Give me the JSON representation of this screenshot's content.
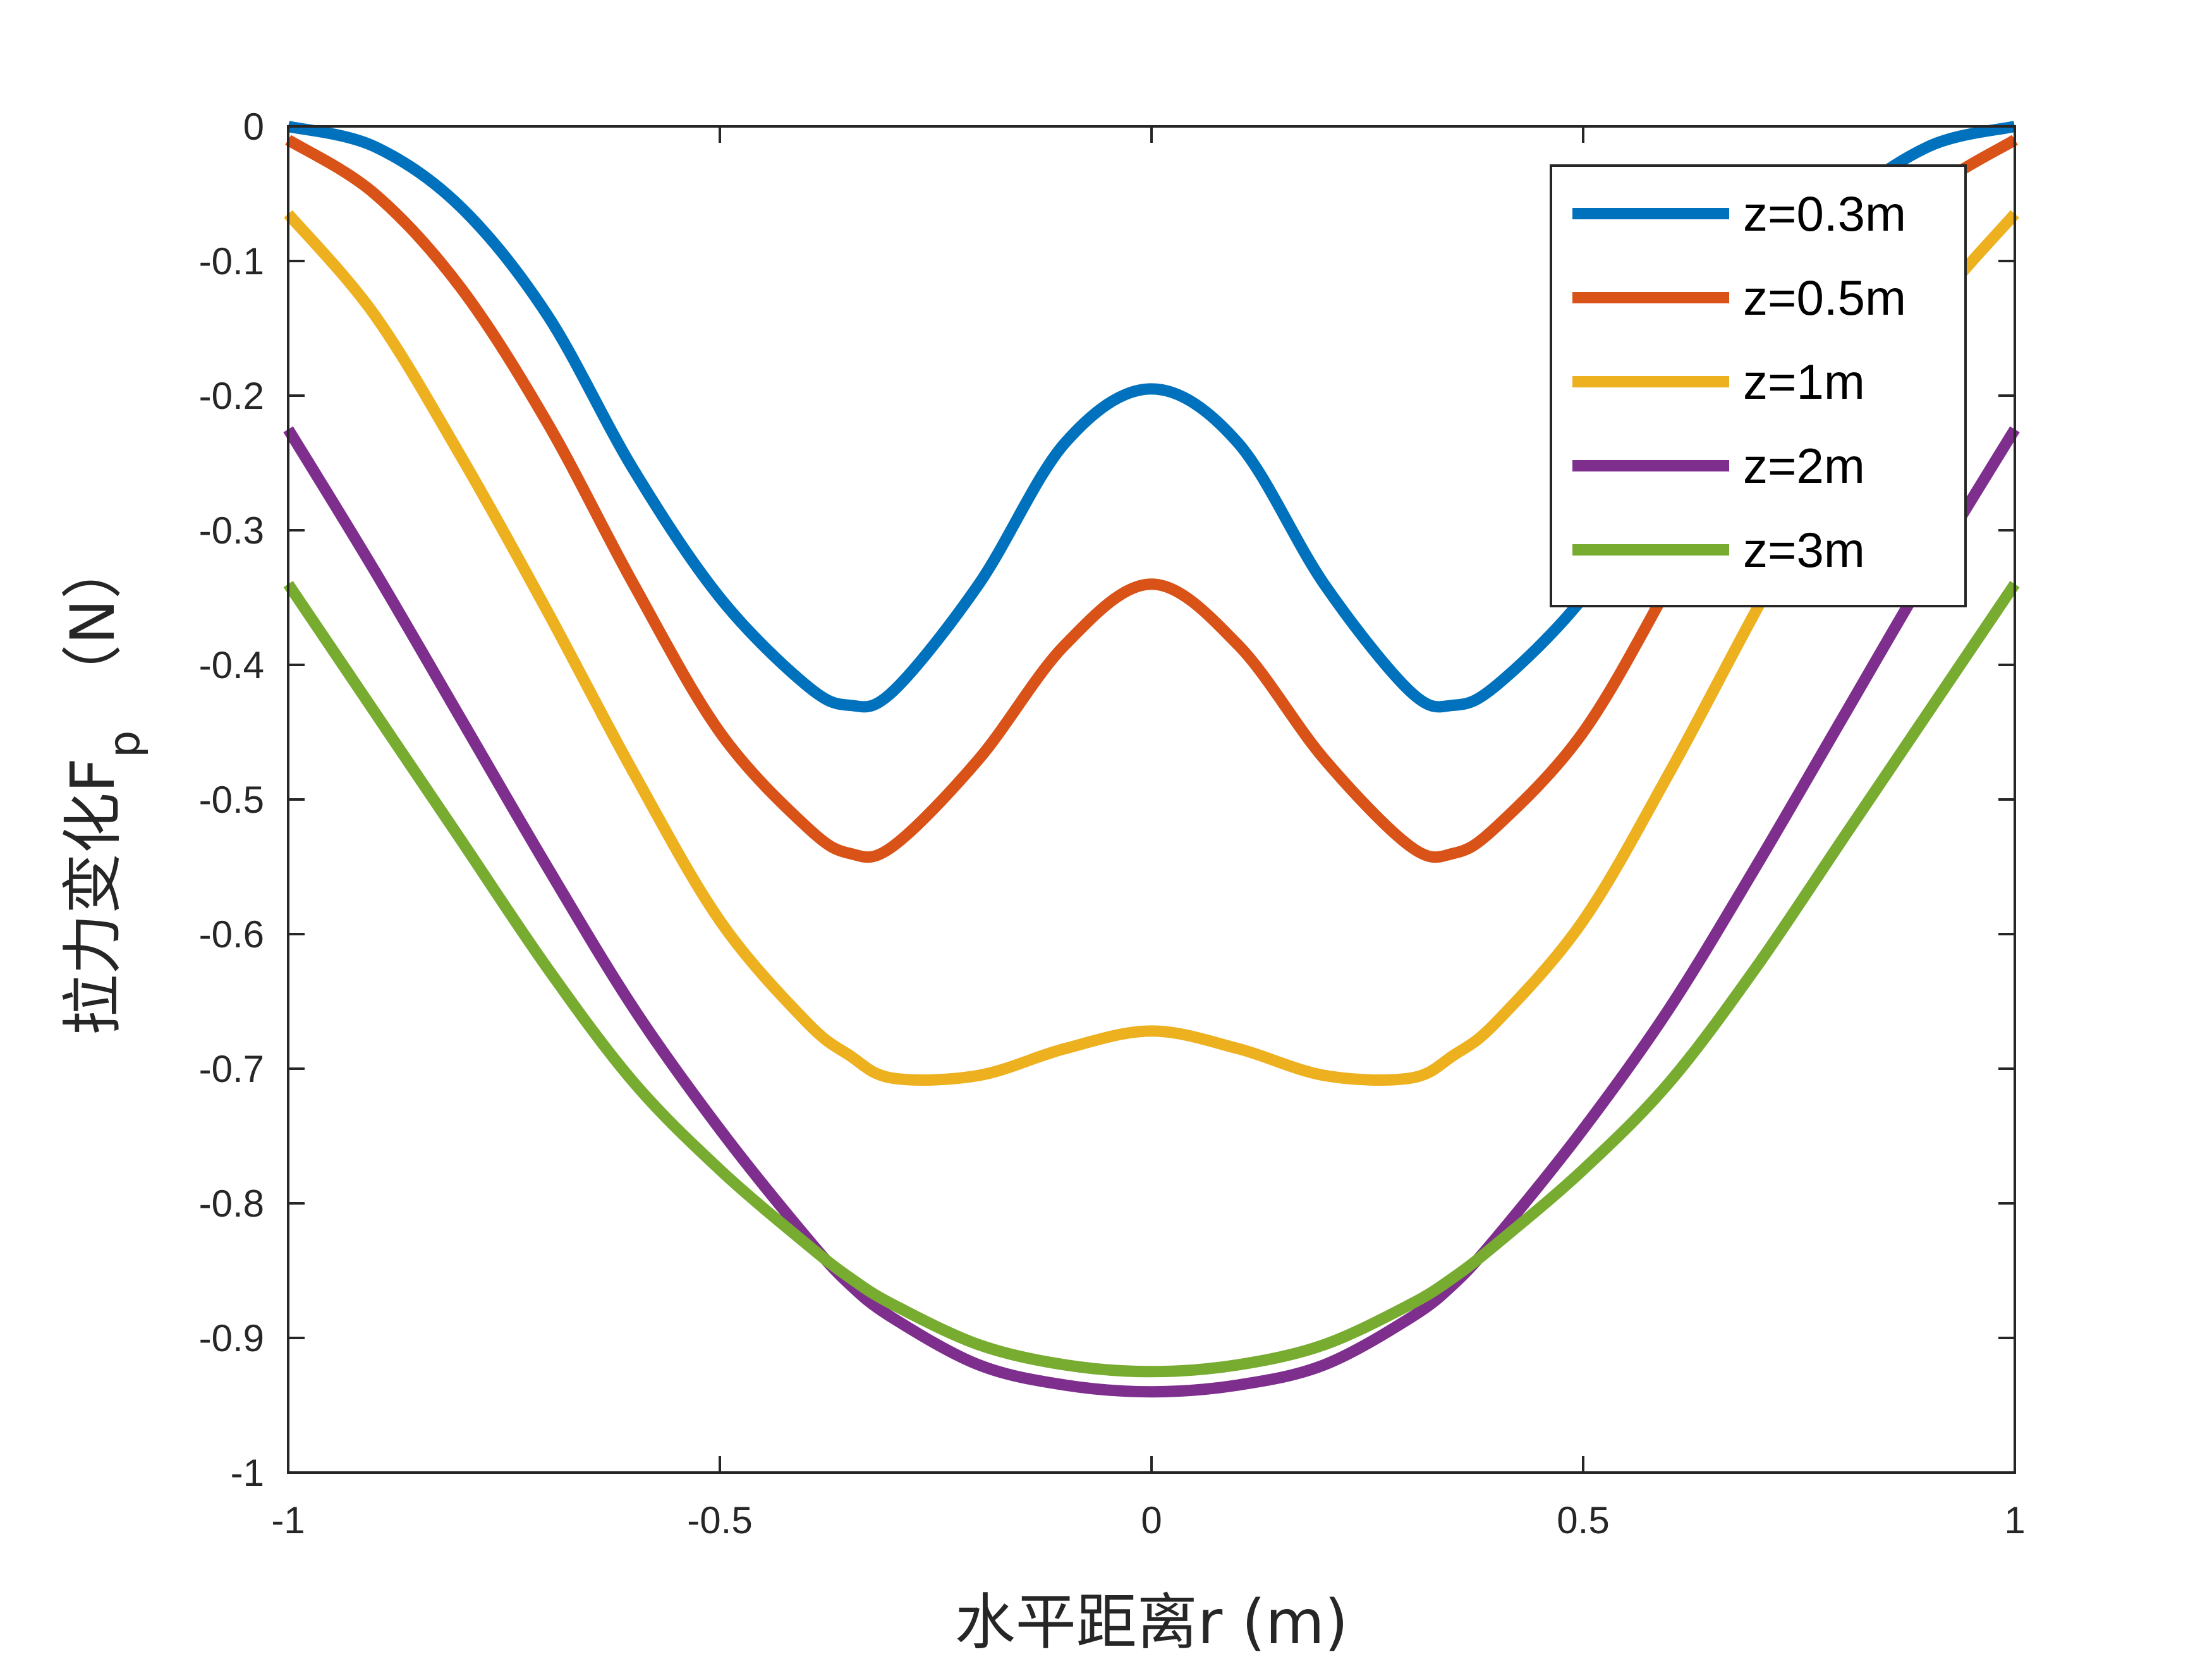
{
  "chart_data": {
    "type": "line",
    "xlabel": "水平距离r (m)",
    "ylabel_main": "拉力变化F",
    "ylabel_sub": "p",
    "ylabel_unit": "（N）",
    "xlim": [
      -1,
      1
    ],
    "ylim": [
      -1,
      0
    ],
    "xticks": [
      -1,
      -0.5,
      0,
      0.5,
      1
    ],
    "xtick_labels": [
      "-1",
      "-0.5",
      "0",
      "0.5",
      "1"
    ],
    "yticks": [
      0,
      -0.1,
      -0.2,
      -0.3,
      -0.4,
      -0.5,
      -0.6,
      -0.7,
      -0.8,
      -0.9,
      -1
    ],
    "ytick_labels": [
      "0",
      "-0.1",
      "-0.2",
      "-0.3",
      "-0.4",
      "-0.5",
      "-0.6",
      "-0.7",
      "-0.8",
      "-0.9",
      "-1"
    ],
    "grid": false,
    "legend_position": "top-right",
    "x": [
      -1,
      -0.9,
      -0.8,
      -0.7,
      -0.6,
      -0.5,
      -0.4,
      -0.35,
      -0.3,
      -0.2,
      -0.1,
      0,
      0.1,
      0.2,
      0.3,
      0.35,
      0.4,
      0.5,
      0.6,
      0.7,
      0.8,
      0.9,
      1
    ],
    "series": [
      {
        "name": "z=0.3m",
        "color": "#0072BD",
        "values": [
          0,
          -0.015,
          -0.06,
          -0.14,
          -0.255,
          -0.35,
          -0.415,
          -0.43,
          -0.42,
          -0.34,
          -0.235,
          -0.195,
          -0.235,
          -0.34,
          -0.42,
          -0.43,
          -0.415,
          -0.35,
          -0.255,
          -0.14,
          -0.06,
          -0.015,
          0
        ]
      },
      {
        "name": "z=0.5m",
        "color": "#D95319",
        "values": [
          -0.01,
          -0.05,
          -0.12,
          -0.22,
          -0.34,
          -0.45,
          -0.52,
          -0.54,
          -0.535,
          -0.47,
          -0.385,
          -0.34,
          -0.385,
          -0.47,
          -0.535,
          -0.54,
          -0.52,
          -0.45,
          -0.34,
          -0.22,
          -0.12,
          -0.05,
          -0.01
        ]
      },
      {
        "name": "z=1m",
        "color": "#EDB120",
        "values": [
          -0.065,
          -0.14,
          -0.245,
          -0.36,
          -0.48,
          -0.59,
          -0.665,
          -0.69,
          -0.707,
          -0.705,
          -0.685,
          -0.672,
          -0.685,
          -0.705,
          -0.707,
          -0.69,
          -0.665,
          -0.59,
          -0.48,
          -0.36,
          -0.245,
          -0.14,
          -0.065
        ]
      },
      {
        "name": "z=2m",
        "color": "#7E2F8E",
        "values": [
          -0.225,
          -0.33,
          -0.44,
          -0.55,
          -0.655,
          -0.745,
          -0.825,
          -0.86,
          -0.885,
          -0.92,
          -0.935,
          -0.94,
          -0.935,
          -0.92,
          -0.885,
          -0.86,
          -0.825,
          -0.745,
          -0.655,
          -0.55,
          -0.44,
          -0.33,
          -0.225
        ]
      },
      {
        "name": "z=3m",
        "color": "#77AC30",
        "values": [
          -0.34,
          -0.435,
          -0.53,
          -0.625,
          -0.71,
          -0.775,
          -0.83,
          -0.855,
          -0.875,
          -0.905,
          -0.92,
          -0.925,
          -0.92,
          -0.905,
          -0.875,
          -0.855,
          -0.83,
          -0.775,
          -0.71,
          -0.625,
          -0.53,
          -0.435,
          -0.34
        ]
      }
    ]
  }
}
